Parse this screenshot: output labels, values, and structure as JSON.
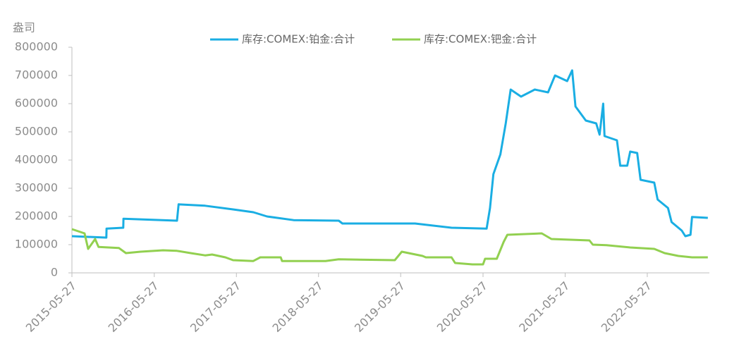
{
  "chart_data": {
    "type": "line",
    "y_label": "盎司",
    "xlim": [
      "2015-05-27",
      "2023-02-27"
    ],
    "xticks": [
      "2015-05-27",
      "2016-05-27",
      "2017-05-27",
      "2018-05-27",
      "2019-05-27",
      "2020-05-27",
      "2021-05-27",
      "2022-05-27"
    ],
    "ylim": [
      0,
      800000
    ],
    "yticks": [
      0,
      100000,
      200000,
      300000,
      400000,
      500000,
      600000,
      700000,
      800000
    ],
    "grid": false,
    "legend": "top",
    "series": [
      {
        "name": "库存:COMEX:铂金:合计",
        "color": "#1aaee3",
        "x": [
          "2015-05-27",
          "2015-10-27",
          "2015-10-28",
          "2016-01-10",
          "2016-01-11",
          "2016-09-05",
          "2016-09-12",
          "2017-01-08",
          "2017-05-12",
          "2017-08-10",
          "2017-10-10",
          "2018-02-05",
          "2018-08-25",
          "2018-09-10",
          "2019-07-30",
          "2020-01-08",
          "2020-06-12",
          "2020-06-27",
          "2020-07-12",
          "2020-08-12",
          "2020-09-05",
          "2020-09-27",
          "2020-11-12",
          "2021-01-12",
          "2021-03-12",
          "2021-04-12",
          "2021-06-05",
          "2021-06-27",
          "2021-07-12",
          "2021-08-27",
          "2021-10-12",
          "2021-10-27",
          "2021-11-12",
          "2021-11-18",
          "2022-01-12",
          "2022-01-27",
          "2022-02-27",
          "2022-03-12",
          "2022-04-12",
          "2022-04-27",
          "2022-06-27",
          "2022-07-12",
          "2022-08-27",
          "2022-09-12",
          "2022-10-27",
          "2022-11-12",
          "2022-12-05",
          "2022-12-12",
          "2023-02-20"
        ],
        "values": [
          130000,
          125000,
          157000,
          160000,
          192000,
          185000,
          243000,
          238000,
          225000,
          215000,
          200000,
          187000,
          185000,
          175000,
          175000,
          160000,
          157000,
          230000,
          350000,
          420000,
          530000,
          650000,
          625000,
          650000,
          640000,
          700000,
          680000,
          718000,
          590000,
          540000,
          530000,
          490000,
          600000,
          485000,
          470000,
          380000,
          380000,
          430000,
          425000,
          330000,
          320000,
          260000,
          230000,
          180000,
          150000,
          130000,
          135000,
          198000,
          195000
        ]
      },
      {
        "name": "库存:COMEX:钯金:合计",
        "color": "#92d050",
        "x": [
          "2015-05-27",
          "2015-07-22",
          "2015-08-07",
          "2015-09-07",
          "2015-09-22",
          "2015-12-22",
          "2016-01-22",
          "2016-03-27",
          "2016-07-05",
          "2016-09-05",
          "2016-11-05",
          "2017-01-08",
          "2017-02-08",
          "2017-04-08",
          "2017-05-12",
          "2017-08-10",
          "2017-09-10",
          "2017-12-10",
          "2017-12-16",
          "2018-06-27",
          "2018-08-25",
          "2019-05-01",
          "2019-06-01",
          "2019-09-01",
          "2019-09-16",
          "2020-01-08",
          "2020-01-24",
          "2020-04-10",
          "2020-05-27",
          "2020-06-05",
          "2020-07-27",
          "2020-08-27",
          "2020-09-12",
          "2021-02-12",
          "2021-03-27",
          "2021-09-12",
          "2021-09-27",
          "2021-11-27",
          "2022-03-12",
          "2022-06-27",
          "2022-08-12",
          "2022-10-12",
          "2022-12-12",
          "2023-02-20"
        ],
        "values": [
          155000,
          140000,
          85000,
          120000,
          92000,
          88000,
          70000,
          75000,
          80000,
          78000,
          70000,
          62000,
          65000,
          55000,
          45000,
          42000,
          55000,
          55000,
          42000,
          42000,
          48000,
          45000,
          75000,
          60000,
          55000,
          55000,
          35000,
          30000,
          30000,
          50000,
          50000,
          110000,
          135000,
          140000,
          120000,
          115000,
          100000,
          98000,
          90000,
          85000,
          70000,
          60000,
          55000,
          55000
        ]
      }
    ]
  }
}
